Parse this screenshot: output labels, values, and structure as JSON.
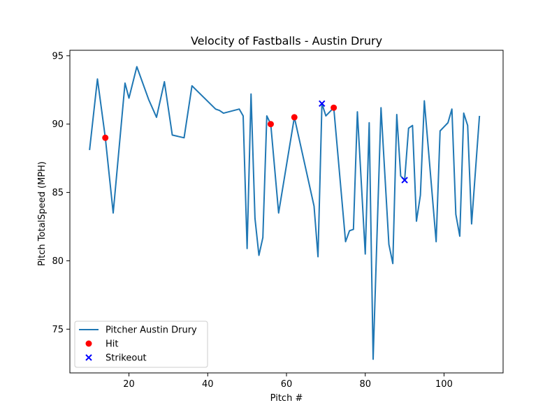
{
  "chart_data": {
    "type": "line",
    "title": "Velocity of Fastballs - Austin Drury",
    "xlabel": "Pitch #",
    "ylabel": "Pitch TotalSpeed (MPH)",
    "xlim": [
      5,
      115
    ],
    "ylim": [
      71.8,
      95.4
    ],
    "xticks": [
      20,
      40,
      60,
      80,
      100
    ],
    "yticks": [
      75,
      80,
      85,
      90,
      95
    ],
    "grid": false,
    "legend_position": "lower-left",
    "series": [
      {
        "name": "Pitcher Austin Drury",
        "color": "#1f77b4",
        "kind": "line",
        "x": [
          10,
          12,
          14,
          16,
          19,
          20,
          22,
          25,
          27,
          29,
          31,
          34,
          36,
          42,
          43,
          44,
          48,
          49,
          50,
          51,
          52,
          53,
          54,
          55,
          56,
          58,
          62,
          67,
          68,
          69,
          70,
          72,
          75,
          76,
          77,
          78,
          80,
          81,
          82,
          84,
          86,
          87,
          88,
          89,
          90,
          91,
          92,
          93,
          94,
          95,
          98,
          99,
          101,
          102,
          103,
          104,
          105,
          106,
          107,
          109
        ],
        "y": [
          88.1,
          93.3,
          89.0,
          83.5,
          93.0,
          91.9,
          94.2,
          91.8,
          90.5,
          93.1,
          89.2,
          89.0,
          92.8,
          91.1,
          91.0,
          90.8,
          91.1,
          90.6,
          80.9,
          92.2,
          83.1,
          80.4,
          81.7,
          90.6,
          90.0,
          83.5,
          90.5,
          84.0,
          80.3,
          91.5,
          90.6,
          91.2,
          81.4,
          82.2,
          82.3,
          90.9,
          80.5,
          90.1,
          72.8,
          91.2,
          81.2,
          79.8,
          90.7,
          86.2,
          85.9,
          89.7,
          89.9,
          82.9,
          84.8,
          91.7,
          81.4,
          89.5,
          90.1,
          91.1,
          83.4,
          81.8,
          90.8,
          89.9,
          82.7,
          90.6
        ]
      },
      {
        "name": "Hit",
        "color": "#ff0000",
        "kind": "scatter",
        "marker": "circle",
        "x": [
          14,
          56,
          62,
          72
        ],
        "y": [
          89.0,
          90.0,
          90.5,
          91.2
        ]
      },
      {
        "name": "Strikeout",
        "color": "#0000ff",
        "kind": "scatter",
        "marker": "x",
        "x": [
          69,
          90
        ],
        "y": [
          91.5,
          85.9
        ]
      }
    ]
  }
}
